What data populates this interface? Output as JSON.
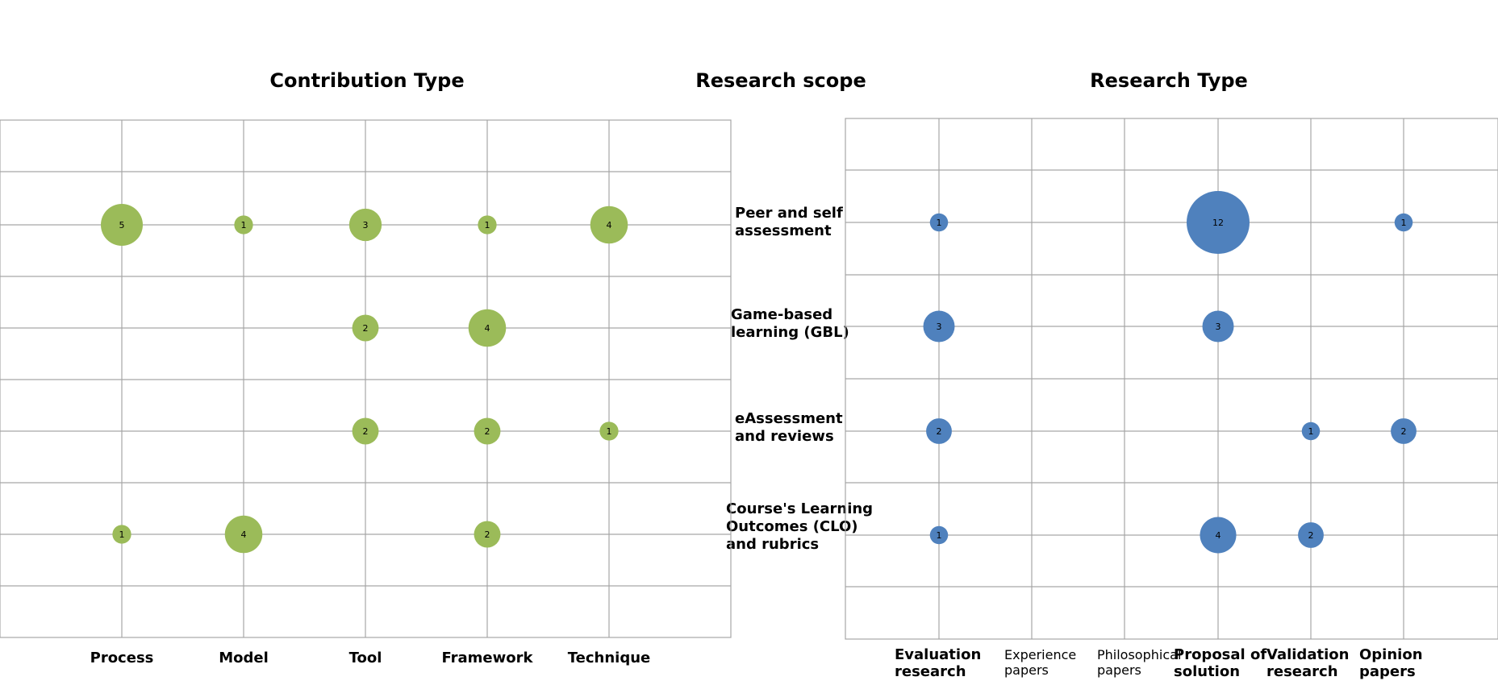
{
  "chart_data": {
    "type": "bubble",
    "title": "Research scope",
    "rows": [
      {
        "label": [
          "Peer and self",
          "assessment"
        ]
      },
      {
        "label": [
          "Game-based",
          "learning (GBL)"
        ]
      },
      {
        "label": [
          "eAssessment",
          "and reviews"
        ]
      },
      {
        "label": [
          "Course's Learning",
          "Outcomes (CLO)",
          "and rubrics"
        ]
      }
    ],
    "panels": [
      {
        "title": "Contribution Type",
        "color": "#9bbb59",
        "categories": [
          [
            "Process"
          ],
          [
            "Model"
          ],
          [
            "Tool"
          ],
          [
            "Framework"
          ],
          [
            "Technique"
          ]
        ],
        "values": [
          [
            5,
            1,
            3,
            1,
            4
          ],
          [
            0,
            0,
            2,
            4,
            0
          ],
          [
            0,
            0,
            2,
            2,
            1
          ],
          [
            1,
            4,
            0,
            2,
            0
          ]
        ]
      },
      {
        "title": "Research Type",
        "color": "#4f81bd",
        "categories": [
          [
            "Evaluation",
            "research"
          ],
          [
            "Experience",
            "papers"
          ],
          [
            "Philosophical",
            "papers"
          ],
          [
            "Proposal of",
            "solution"
          ],
          [
            "Validation",
            "research"
          ],
          [
            "Opinion",
            "papers"
          ]
        ],
        "values": [
          [
            1,
            0,
            0,
            12,
            0,
            1
          ],
          [
            3,
            0,
            0,
            3,
            0,
            0
          ],
          [
            2,
            0,
            0,
            0,
            1,
            2
          ],
          [
            1,
            0,
            0,
            4,
            2,
            0
          ]
        ]
      }
    ]
  }
}
